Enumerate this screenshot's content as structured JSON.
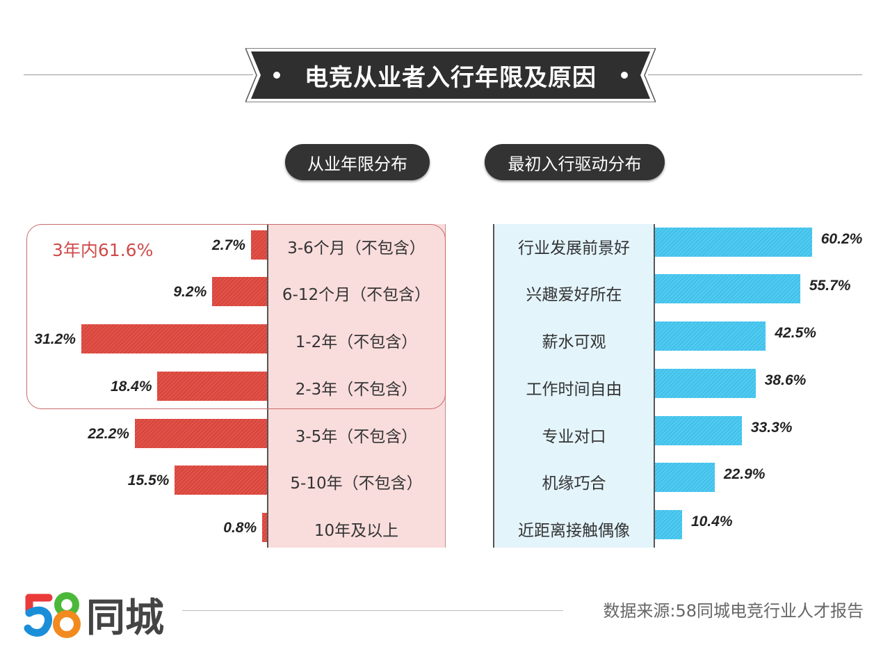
{
  "title": "电竞从业者入行年限及原因",
  "source": "数据来源:58同城电竞行业人才报告",
  "logo": {
    "text": "同城",
    "number": "58"
  },
  "colors": {
    "left_bar": "#d8443b",
    "right_bar": "#3fc0ea",
    "left_panel": "#f9dcdc",
    "right_panel": "#e3f4fb",
    "pill": "#333333"
  },
  "chart_data": [
    {
      "type": "bar",
      "title": "从业年限分布",
      "orientation": "horizontal-left",
      "annotation": "3年内61.6%",
      "categories": [
        "3-6个月（不包含）",
        "6-12个月（不包含）",
        "1-2年（不包含）",
        "2-3年（不包含）",
        "3-5年（不包含）",
        "5-10年（不包含）",
        "10年及以上"
      ],
      "values": [
        2.7,
        9.2,
        31.2,
        18.4,
        22.2,
        15.5,
        0.8
      ],
      "labels": [
        "2.7%",
        "9.2%",
        "31.2%",
        "18.4%",
        "22.2%",
        "15.5%",
        "0.8%"
      ],
      "unit": "%"
    },
    {
      "type": "bar",
      "title": "最初入行驱动分布",
      "orientation": "horizontal",
      "categories": [
        "行业发展前景好",
        "兴趣爱好所在",
        "薪水可观",
        "工作时间自由",
        "专业对口",
        "机缘巧合",
        "近距离接触偶像"
      ],
      "values": [
        60.2,
        55.7,
        42.5,
        38.6,
        33.3,
        22.9,
        10.4
      ],
      "labels": [
        "60.2%",
        "55.7%",
        "42.5%",
        "38.6%",
        "33.3%",
        "22.9%",
        "10.4%"
      ],
      "unit": "%"
    }
  ]
}
